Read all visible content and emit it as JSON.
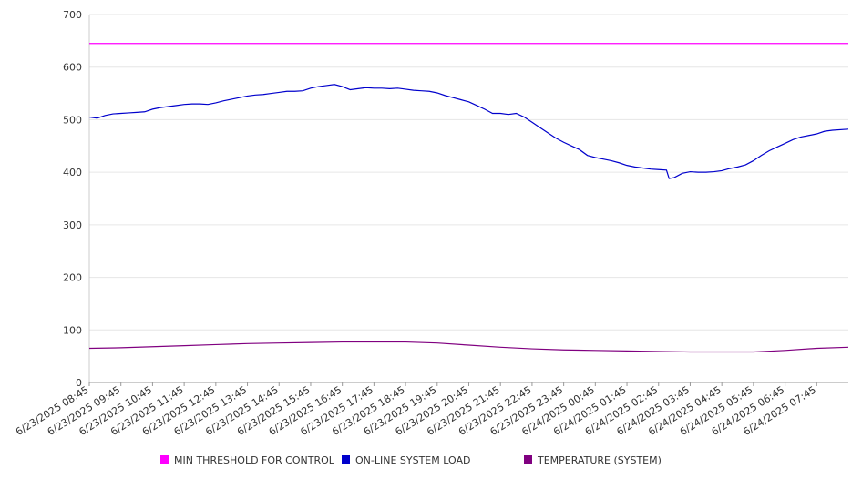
{
  "chart_data": {
    "type": "line",
    "title": "",
    "xlabel": "",
    "ylabel": "",
    "ylim": [
      0,
      700
    ],
    "yticks": [
      0,
      100,
      200,
      300,
      400,
      500,
      600,
      700
    ],
    "grid": "horizontal",
    "legend_position": "bottom",
    "x_ticks": [
      "6/23/2025 08:45",
      "6/23/2025 09:45",
      "6/23/2025 10:45",
      "6/23/2025 11:45",
      "6/23/2025 12:45",
      "6/23/2025 13:45",
      "6/23/2025 14:45",
      "6/23/2025 15:45",
      "6/23/2025 16:45",
      "6/23/2025 17:45",
      "6/23/2025 18:45",
      "6/23/2025 19:45",
      "6/23/2025 20:45",
      "6/23/2025 21:45",
      "6/23/2025 22:45",
      "6/23/2025 23:45",
      "6/24/2025 00:45",
      "6/24/2025 01:45",
      "6/24/2025 02:45",
      "6/24/2025 03:45",
      "6/24/2025 04:45",
      "6/24/2025 05:45",
      "6/24/2025 06:45",
      "6/24/2025 07:45"
    ],
    "series": [
      {
        "name": "MIN THRESHOLD FOR CONTROL",
        "color": "#ff00ff",
        "points": [
          [
            "6/23/2025 08:45",
            645
          ],
          [
            "6/24/2025 08:45",
            645
          ]
        ]
      },
      {
        "name": "ON-LINE SYSTEM LOAD",
        "color": "#0000cc",
        "points": [
          [
            "6/23/2025 08:45",
            505
          ],
          [
            "6/23/2025 09:00",
            503
          ],
          [
            "6/23/2025 09:15",
            508
          ],
          [
            "6/23/2025 09:30",
            511
          ],
          [
            "6/23/2025 09:45",
            512
          ],
          [
            "6/23/2025 10:00",
            513
          ],
          [
            "6/23/2025 10:15",
            514
          ],
          [
            "6/23/2025 10:30",
            515
          ],
          [
            "6/23/2025 10:45",
            520
          ],
          [
            "6/23/2025 11:00",
            523
          ],
          [
            "6/23/2025 11:15",
            525
          ],
          [
            "6/23/2025 11:30",
            527
          ],
          [
            "6/23/2025 11:45",
            529
          ],
          [
            "6/23/2025 12:00",
            530
          ],
          [
            "6/23/2025 12:15",
            530
          ],
          [
            "6/23/2025 12:30",
            529
          ],
          [
            "6/23/2025 12:45",
            532
          ],
          [
            "6/23/2025 13:00",
            536
          ],
          [
            "6/23/2025 13:15",
            539
          ],
          [
            "6/23/2025 13:30",
            542
          ],
          [
            "6/23/2025 13:45",
            545
          ],
          [
            "6/23/2025 14:00",
            547
          ],
          [
            "6/23/2025 14:15",
            548
          ],
          [
            "6/23/2025 14:30",
            550
          ],
          [
            "6/23/2025 14:45",
            552
          ],
          [
            "6/23/2025 15:00",
            554
          ],
          [
            "6/23/2025 15:15",
            554
          ],
          [
            "6/23/2025 15:30",
            555
          ],
          [
            "6/23/2025 15:45",
            560
          ],
          [
            "6/23/2025 16:00",
            563
          ],
          [
            "6/23/2025 16:15",
            565
          ],
          [
            "6/23/2025 16:30",
            567
          ],
          [
            "6/23/2025 16:45",
            563
          ],
          [
            "6/23/2025 17:00",
            557
          ],
          [
            "6/23/2025 17:15",
            559
          ],
          [
            "6/23/2025 17:30",
            561
          ],
          [
            "6/23/2025 17:45",
            560
          ],
          [
            "6/23/2025 18:00",
            560
          ],
          [
            "6/23/2025 18:15",
            559
          ],
          [
            "6/23/2025 18:30",
            560
          ],
          [
            "6/23/2025 18:45",
            558
          ],
          [
            "6/23/2025 19:00",
            556
          ],
          [
            "6/23/2025 19:15",
            555
          ],
          [
            "6/23/2025 19:30",
            554
          ],
          [
            "6/23/2025 19:45",
            551
          ],
          [
            "6/23/2025 20:00",
            546
          ],
          [
            "6/23/2025 20:15",
            542
          ],
          [
            "6/23/2025 20:30",
            538
          ],
          [
            "6/23/2025 20:45",
            534
          ],
          [
            "6/23/2025 21:00",
            527
          ],
          [
            "6/23/2025 21:15",
            520
          ],
          [
            "6/23/2025 21:30",
            512
          ],
          [
            "6/23/2025 21:45",
            512
          ],
          [
            "6/23/2025 22:00",
            510
          ],
          [
            "6/23/2025 22:15",
            512
          ],
          [
            "6/23/2025 22:30",
            505
          ],
          [
            "6/23/2025 22:45",
            495
          ],
          [
            "6/23/2025 23:00",
            485
          ],
          [
            "6/23/2025 23:15",
            475
          ],
          [
            "6/23/2025 23:30",
            465
          ],
          [
            "6/23/2025 23:45",
            457
          ],
          [
            "6/24/2025 00:00",
            450
          ],
          [
            "6/24/2025 00:15",
            443
          ],
          [
            "6/24/2025 00:30",
            432
          ],
          [
            "6/24/2025 00:45",
            428
          ],
          [
            "6/24/2025 01:00",
            425
          ],
          [
            "6/24/2025 01:15",
            422
          ],
          [
            "6/24/2025 01:30",
            418
          ],
          [
            "6/24/2025 01:45",
            413
          ],
          [
            "6/24/2025 02:00",
            410
          ],
          [
            "6/24/2025 02:15",
            408
          ],
          [
            "6/24/2025 02:30",
            406
          ],
          [
            "6/24/2025 02:45",
            405
          ],
          [
            "6/24/2025 03:00",
            404
          ],
          [
            "6/24/2025 03:05",
            388
          ],
          [
            "6/24/2025 03:15",
            390
          ],
          [
            "6/24/2025 03:30",
            398
          ],
          [
            "6/24/2025 03:45",
            401
          ],
          [
            "6/24/2025 04:00",
            400
          ],
          [
            "6/24/2025 04:15",
            400
          ],
          [
            "6/24/2025 04:30",
            401
          ],
          [
            "6/24/2025 04:45",
            403
          ],
          [
            "6/24/2025 05:00",
            407
          ],
          [
            "6/24/2025 05:15",
            410
          ],
          [
            "6/24/2025 05:30",
            414
          ],
          [
            "6/24/2025 05:45",
            422
          ],
          [
            "6/24/2025 06:00",
            432
          ],
          [
            "6/24/2025 06:15",
            441
          ],
          [
            "6/24/2025 06:30",
            448
          ],
          [
            "6/24/2025 06:45",
            455
          ],
          [
            "6/24/2025 07:00",
            462
          ],
          [
            "6/24/2025 07:15",
            467
          ],
          [
            "6/24/2025 07:30",
            470
          ],
          [
            "6/24/2025 07:45",
            473
          ],
          [
            "6/24/2025 08:00",
            478
          ],
          [
            "6/24/2025 08:15",
            480
          ],
          [
            "6/24/2025 08:45",
            482
          ]
        ]
      },
      {
        "name": "TEMPERATURE (SYSTEM)",
        "color": "#800080",
        "points": [
          [
            "6/23/2025 08:45",
            65
          ],
          [
            "6/23/2025 09:45",
            66
          ],
          [
            "6/23/2025 10:45",
            68
          ],
          [
            "6/23/2025 11:45",
            70
          ],
          [
            "6/23/2025 12:45",
            72
          ],
          [
            "6/23/2025 13:45",
            74
          ],
          [
            "6/23/2025 14:45",
            75
          ],
          [
            "6/23/2025 15:45",
            76
          ],
          [
            "6/23/2025 16:45",
            77
          ],
          [
            "6/23/2025 17:45",
            77
          ],
          [
            "6/23/2025 18:45",
            77
          ],
          [
            "6/23/2025 19:45",
            75
          ],
          [
            "6/23/2025 20:45",
            71
          ],
          [
            "6/23/2025 21:45",
            67
          ],
          [
            "6/23/2025 22:45",
            64
          ],
          [
            "6/23/2025 23:45",
            62
          ],
          [
            "6/24/2025 00:45",
            61
          ],
          [
            "6/24/2025 01:45",
            60
          ],
          [
            "6/24/2025 02:45",
            59
          ],
          [
            "6/24/2025 03:45",
            58
          ],
          [
            "6/24/2025 04:45",
            58
          ],
          [
            "6/24/2025 05:45",
            58
          ],
          [
            "6/24/2025 06:45",
            61
          ],
          [
            "6/24/2025 07:45",
            65
          ],
          [
            "6/24/2025 08:45",
            67
          ]
        ]
      }
    ]
  }
}
